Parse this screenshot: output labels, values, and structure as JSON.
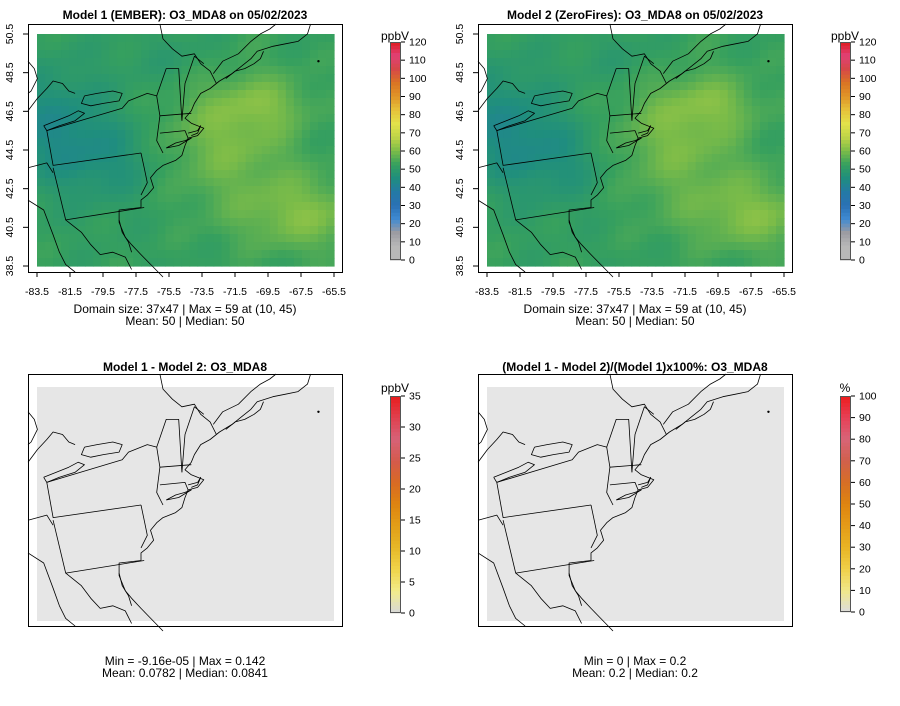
{
  "figure": {
    "variable": "O3_MDA8",
    "date": "05/02/2023"
  },
  "colors": {
    "conc_scale": [
      "#b8b8b8",
      "#b8b8b8",
      "#9c9ca2",
      "#3f8ad2",
      "#2a71b4",
      "#247aa5",
      "#1f8e7e",
      "#36a05e",
      "#7cbc48",
      "#bfd448",
      "#e2e24a",
      "#e6c23a",
      "#e09428",
      "#da7424",
      "#d64848",
      "#e04076",
      "#e01c20"
    ],
    "diff_scale": [
      "#d8d8d8",
      "#f2ec8a",
      "#f0d44a",
      "#e6b828",
      "#e29e18",
      "#de8410",
      "#d86a24",
      "#d45a4c",
      "#d66278",
      "#e0404e",
      "#e81c1c"
    ],
    "pct_scale": [
      "#dcdcdc",
      "#f0e888",
      "#f0cf48",
      "#e8b424",
      "#e49a18",
      "#de8410",
      "#d66e26",
      "#d0604c",
      "#d86478",
      "#e64056",
      "#ee1c1c"
    ],
    "map_background": "#e6e6e6",
    "coastline": "#000000"
  },
  "chart_data": [
    {
      "type": "heatmap",
      "title": "Model 1 (EMBER): O3_MDA8 on 05/02/2023",
      "xlabel": "",
      "ylabel": "",
      "x_ticks": [
        "-83.5",
        "-81.5",
        "-79.5",
        "-77.5",
        "-75.5",
        "-73.5",
        "-71.5",
        "-69.5",
        "-67.5",
        "-65.5"
      ],
      "y_ticks": [
        "38.5",
        "40.5",
        "42.5",
        "44.5",
        "46.5",
        "48.5",
        "50.5"
      ],
      "xlim": [
        -83.5,
        -65.5
      ],
      "ylim": [
        38.5,
        50.5
      ],
      "colorbar": {
        "unit": "ppbV",
        "ticks": [
          "0",
          "10",
          "20",
          "30",
          "40",
          "50",
          "60",
          "70",
          "80",
          "90",
          "100",
          "110",
          "120"
        ],
        "scale": "conc_scale"
      },
      "stats": {
        "line1": "Domain size: 37x47 | Max = 59 at (10, 45)",
        "line2": "Mean: 50 |  Median: 50"
      },
      "field": "ozone"
    },
    {
      "type": "heatmap",
      "title": "Model 2 (ZeroFires): O3_MDA8 on 05/02/2023",
      "xlabel": "",
      "ylabel": "",
      "x_ticks": [
        "-83.5",
        "-81.5",
        "-79.5",
        "-77.5",
        "-75.5",
        "-73.5",
        "-71.5",
        "-69.5",
        "-67.5",
        "-65.5"
      ],
      "y_ticks": [
        "38.5",
        "40.5",
        "42.5",
        "44.5",
        "46.5",
        "48.5",
        "50.5"
      ],
      "xlim": [
        -83.5,
        -65.5
      ],
      "ylim": [
        38.5,
        50.5
      ],
      "colorbar": {
        "unit": "ppbV",
        "ticks": [
          "0",
          "10",
          "20",
          "30",
          "40",
          "50",
          "60",
          "70",
          "80",
          "90",
          "100",
          "110",
          "120"
        ],
        "scale": "conc_scale"
      },
      "stats": {
        "line1": "Domain size: 37x47 | Max = 59 at (10, 45)",
        "line2": "Mean: 50 |  Median: 50"
      },
      "field": "ozone"
    },
    {
      "type": "heatmap",
      "title": "Model 1 - Model 2: O3_MDA8",
      "colorbar": {
        "unit": "ppbV",
        "ticks": [
          "0",
          "5",
          "10",
          "15",
          "20",
          "25",
          "30",
          "35"
        ],
        "scale": "diff_scale"
      },
      "stats": {
        "line1": "Min = -9.16e-05 | Max = 0.142",
        "line2": "Mean: 0.0782 |  Median: 0.0841"
      },
      "field": "uniform"
    },
    {
      "type": "heatmap",
      "title": "(Model 1 - Model 2)/(Model 1)x100%: O3_MDA8",
      "colorbar": {
        "unit": "%",
        "ticks": [
          "0",
          "10",
          "20",
          "30",
          "40",
          "50",
          "60",
          "70",
          "80",
          "90",
          "100"
        ],
        "scale": "pct_scale"
      },
      "stats": {
        "line1": "Min = 0 | Max = 0.2",
        "line2": "Mean: 0.2 |  Median: 0.2"
      },
      "field": "uniform"
    }
  ]
}
